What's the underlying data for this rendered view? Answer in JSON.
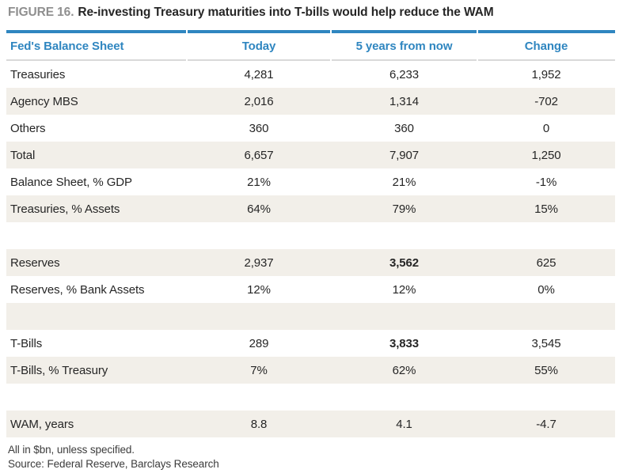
{
  "figure": {
    "label": "FIGURE 16.",
    "title": "Re-investing Treasury maturities into T-bills would help reduce the WAM"
  },
  "table": {
    "columns": [
      "Fed's Balance Sheet",
      "Today",
      "5 years from now",
      "Change"
    ],
    "rows": [
      {
        "label": "Treasuries",
        "today": "4,281",
        "future": "6,233",
        "change": "1,952"
      },
      {
        "label": "Agency MBS",
        "today": "2,016",
        "future": "1,314",
        "change": "-702"
      },
      {
        "label": "Others",
        "today": "360",
        "future": "360",
        "change": "0"
      },
      {
        "label": "Total",
        "today": "6,657",
        "future": "7,907",
        "change": "1,250"
      },
      {
        "label": "Balance Sheet, % GDP",
        "today": "21%",
        "future": "21%",
        "change": "-1%"
      },
      {
        "label": "Treasuries, % Assets",
        "today": "64%",
        "future": "79%",
        "change": "15%"
      },
      {
        "label": "",
        "today": "",
        "future": "",
        "change": "",
        "blank": true
      },
      {
        "label": "Reserves",
        "today": "2,937",
        "future": "3,562",
        "change": "625",
        "bold_future": true
      },
      {
        "label": "Reserves, % Bank Assets",
        "today": "12%",
        "future": "12%",
        "change": "0%"
      },
      {
        "label": "",
        "today": "",
        "future": "",
        "change": "",
        "blank": true
      },
      {
        "label": "T-Bills",
        "today": "289",
        "future": "3,833",
        "change": "3,545",
        "bold_future": true
      },
      {
        "label": "T-Bills, % Treasury",
        "today": "7%",
        "future": "62%",
        "change": "55%"
      },
      {
        "label": "",
        "today": "",
        "future": "",
        "change": "",
        "blank": true
      },
      {
        "label": "WAM, years",
        "today": "8.8",
        "future": "4.1",
        "change": "-4.7"
      }
    ]
  },
  "footnotes": [
    "All in $bn, unless specified.",
    "Source: Federal Reserve, Barclays Research"
  ],
  "colors": {
    "accent_blue": "#2f86c0",
    "row_alt": "#f2efe9",
    "text_dark": "#262626",
    "figure_label_gray": "#8f8f8f",
    "header_separator": "#d9d9d9",
    "footnote_color": "#3c3c3c"
  }
}
